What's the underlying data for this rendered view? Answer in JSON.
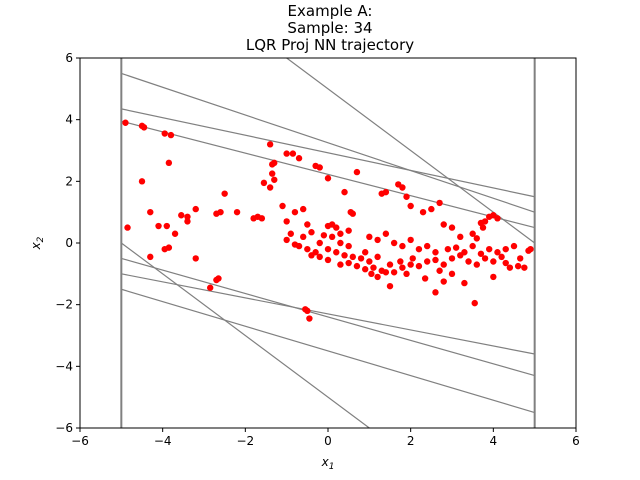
{
  "chart_data": {
    "type": "scatter",
    "title_lines": [
      "Example A:",
      "Sample: 34",
      "LQR Proj NN trajectory"
    ],
    "xlabel_base": "x",
    "xlabel_sub": "1",
    "ylabel_base": "x",
    "ylabel_sub": "2",
    "xlim": [
      -6,
      6
    ],
    "ylim": [
      -6,
      6
    ],
    "xticks": [
      -6,
      -4,
      -2,
      0,
      2,
      4,
      6
    ],
    "yticks": [
      -6,
      -4,
      -2,
      0,
      2,
      4,
      6
    ],
    "grid": false,
    "colors": {
      "points": "#ff0000",
      "lines": "#808080"
    },
    "vertical_lines": [
      -5,
      5
    ],
    "constraint_lines": [
      [
        [
          -5,
          5.5
        ],
        [
          5,
          1.0
        ]
      ],
      [
        [
          -5,
          4.35
        ],
        [
          5,
          1.5
        ]
      ],
      [
        [
          -5,
          3.95
        ],
        [
          5,
          0.5
        ]
      ],
      [
        [
          -1,
          6.0
        ],
        [
          5,
          0.0
        ]
      ],
      [
        [
          -5,
          -0.5
        ],
        [
          5,
          -4.3
        ]
      ],
      [
        [
          -5,
          -1.0
        ],
        [
          5,
          -3.6
        ]
      ],
      [
        [
          -5,
          -1.5
        ],
        [
          5,
          -5.5
        ]
      ],
      [
        [
          -5,
          0.0
        ],
        [
          1,
          -6.0
        ]
      ]
    ],
    "points": [
      [
        -4.9,
        3.9
      ],
      [
        -4.5,
        3.8
      ],
      [
        -4.45,
        3.75
      ],
      [
        -3.95,
        3.55
      ],
      [
        -3.8,
        3.5
      ],
      [
        -3.85,
        2.6
      ],
      [
        -4.5,
        2.0
      ],
      [
        -4.3,
        1.0
      ],
      [
        -4.1,
        0.55
      ],
      [
        -3.9,
        0.55
      ],
      [
        -4.85,
        0.5
      ],
      [
        -4.3,
        -0.45
      ],
      [
        -3.85,
        -0.15
      ],
      [
        -3.95,
        -0.2
      ],
      [
        -3.7,
        0.3
      ],
      [
        -3.55,
        0.9
      ],
      [
        -3.4,
        0.85
      ],
      [
        -3.2,
        1.1
      ],
      [
        -3.4,
        0.7
      ],
      [
        -3.2,
        -0.5
      ],
      [
        -2.85,
        -1.45
      ],
      [
        -2.7,
        -1.2
      ],
      [
        -2.65,
        -1.15
      ],
      [
        -2.7,
        0.95
      ],
      [
        -2.6,
        1.0
      ],
      [
        -2.5,
        1.6
      ],
      [
        -2.2,
        1.0
      ],
      [
        -1.8,
        0.8
      ],
      [
        -1.7,
        0.85
      ],
      [
        -1.6,
        0.8
      ],
      [
        -1.55,
        1.95
      ],
      [
        -1.4,
        1.8
      ],
      [
        -1.4,
        3.2
      ],
      [
        -1.3,
        2.05
      ],
      [
        -1.35,
        2.25
      ],
      [
        -1.0,
        2.9
      ],
      [
        -0.85,
        2.9
      ],
      [
        -0.7,
        2.75
      ],
      [
        -1.3,
        2.6
      ],
      [
        -1.35,
        2.55
      ],
      [
        -1.1,
        1.2
      ],
      [
        -0.8,
        1.0
      ],
      [
        -0.6,
        1.1
      ],
      [
        -1.0,
        0.7
      ],
      [
        -0.5,
        0.6
      ],
      [
        -0.4,
        0.35
      ],
      [
        -0.6,
        0.2
      ],
      [
        -0.7,
        -0.1
      ],
      [
        -0.5,
        -0.2
      ],
      [
        -0.4,
        -0.4
      ],
      [
        -0.55,
        -2.15
      ],
      [
        -0.5,
        -2.2
      ],
      [
        -0.45,
        -2.45
      ],
      [
        -0.3,
        2.5
      ],
      [
        -0.2,
        2.45
      ],
      [
        0.0,
        2.1
      ],
      [
        0.4,
        1.65
      ],
      [
        0.55,
        1.0
      ],
      [
        0.6,
        0.95
      ],
      [
        0.7,
        2.3
      ],
      [
        0.0,
        0.55
      ],
      [
        0.2,
        0.5
      ],
      [
        0.5,
        0.4
      ],
      [
        0.1,
        0.2
      ],
      [
        0.3,
        0.0
      ],
      [
        0.0,
        -0.2
      ],
      [
        0.2,
        -0.3
      ],
      [
        0.4,
        -0.4
      ],
      [
        0.6,
        -0.45
      ],
      [
        0.8,
        -0.5
      ],
      [
        0.9,
        -0.3
      ],
      [
        1.0,
        -0.6
      ],
      [
        1.1,
        -0.8
      ],
      [
        1.2,
        -0.45
      ],
      [
        1.3,
        -0.9
      ],
      [
        1.5,
        -0.7
      ],
      [
        1.6,
        -0.95
      ],
      [
        1.8,
        -0.8
      ],
      [
        2.0,
        -0.7
      ],
      [
        2.2,
        -0.75
      ],
      [
        2.4,
        -0.6
      ],
      [
        2.6,
        -0.55
      ],
      [
        2.8,
        -0.7
      ],
      [
        3.0,
        -0.5
      ],
      [
        3.2,
        -0.4
      ],
      [
        3.4,
        -0.6
      ],
      [
        3.6,
        -0.7
      ],
      [
        3.8,
        -0.5
      ],
      [
        4.0,
        -0.6
      ],
      [
        4.2,
        -0.45
      ],
      [
        4.4,
        -0.8
      ],
      [
        4.6,
        -0.75
      ],
      [
        4.75,
        -0.8
      ],
      [
        4.9,
        -0.2
      ],
      [
        4.85,
        -0.25
      ],
      [
        1.3,
        1.6
      ],
      [
        1.4,
        1.65
      ],
      [
        1.7,
        1.9
      ],
      [
        1.8,
        1.8
      ],
      [
        1.9,
        1.5
      ],
      [
        2.0,
        1.2
      ],
      [
        2.3,
        1.0
      ],
      [
        2.5,
        1.1
      ],
      [
        2.7,
        1.3
      ],
      [
        2.8,
        0.6
      ],
      [
        3.0,
        0.5
      ],
      [
        3.2,
        0.2
      ],
      [
        3.5,
        0.3
      ],
      [
        3.7,
        0.65
      ],
      [
        3.8,
        0.7
      ],
      [
        3.9,
        0.85
      ],
      [
        4.0,
        0.9
      ],
      [
        4.1,
        0.8
      ],
      [
        3.75,
        0.5
      ],
      [
        3.6,
        0.15
      ],
      [
        1.0,
        0.2
      ],
      [
        1.2,
        0.1
      ],
      [
        1.4,
        0.3
      ],
      [
        1.6,
        0.0
      ],
      [
        1.8,
        -0.1
      ],
      [
        2.0,
        0.1
      ],
      [
        2.2,
        -0.2
      ],
      [
        2.4,
        -0.1
      ],
      [
        2.6,
        -0.3
      ],
      [
        2.9,
        -0.2
      ],
      [
        3.1,
        -0.15
      ],
      [
        3.3,
        -0.3
      ],
      [
        3.5,
        -0.1
      ],
      [
        3.7,
        -0.35
      ],
      [
        3.9,
        -0.2
      ],
      [
        4.1,
        -0.3
      ],
      [
        4.3,
        -0.2
      ],
      [
        4.5,
        -0.1
      ],
      [
        4.65,
        -0.5
      ],
      [
        4.3,
        -0.65
      ],
      [
        2.35,
        -1.15
      ],
      [
        2.6,
        -1.6
      ],
      [
        3.0,
        -1.0
      ],
      [
        3.3,
        -1.3
      ],
      [
        3.55,
        -1.95
      ],
      [
        1.5,
        -1.4
      ],
      [
        1.2,
        -1.1
      ],
      [
        1.9,
        -1.0
      ],
      [
        2.8,
        -1.25
      ],
      [
        4.0,
        -1.1
      ],
      [
        0.3,
        -0.7
      ],
      [
        0.5,
        -0.65
      ],
      [
        0.7,
        -0.75
      ],
      [
        0.9,
        -0.85
      ],
      [
        -0.3,
        -0.3
      ],
      [
        -0.2,
        0.0
      ],
      [
        -0.1,
        0.25
      ],
      [
        0.1,
        0.6
      ],
      [
        0.3,
        0.3
      ],
      [
        0.5,
        -0.1
      ],
      [
        -1.0,
        0.1
      ],
      [
        -0.9,
        0.3
      ],
      [
        -0.8,
        -0.05
      ],
      [
        -0.2,
        -0.45
      ],
      [
        0.0,
        -0.55
      ],
      [
        1.05,
        -1.0
      ],
      [
        1.4,
        -0.95
      ],
      [
        1.75,
        -0.6
      ],
      [
        2.05,
        -0.5
      ],
      [
        2.7,
        -0.9
      ]
    ]
  }
}
